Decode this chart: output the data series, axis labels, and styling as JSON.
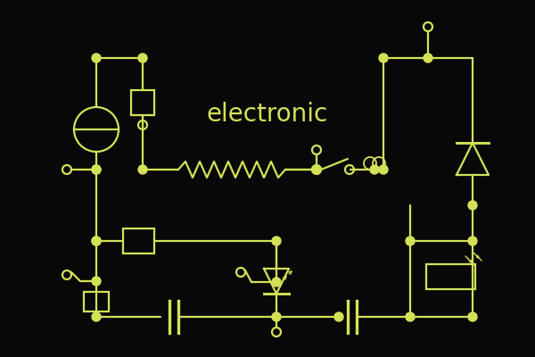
{
  "bg_color": "#080808",
  "lc": "#d4e157",
  "title": "electronic",
  "title_fontsize": 20,
  "lw": 1.6,
  "dot_r": 0.055,
  "open_r": 0.055
}
